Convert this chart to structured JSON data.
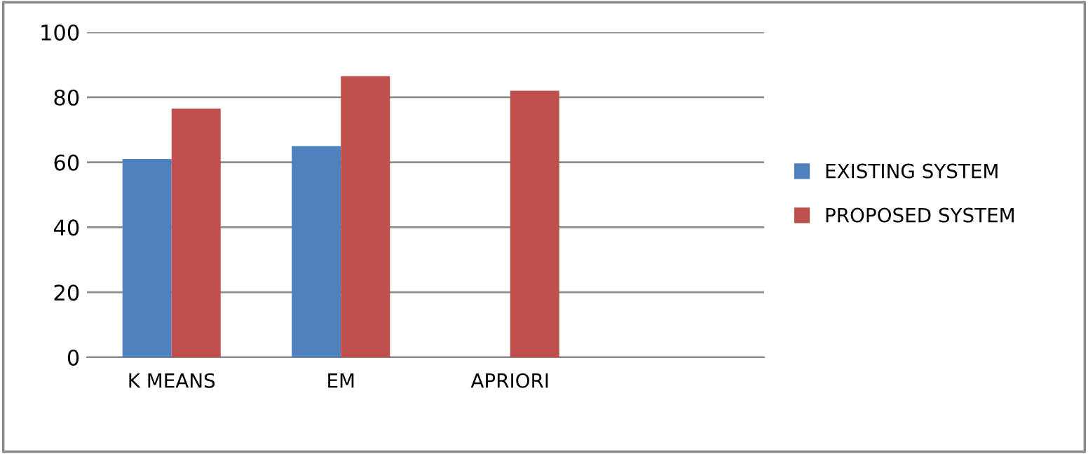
{
  "chart_data": {
    "type": "bar",
    "categories": [
      "K MEANS",
      "EM",
      "APRIORI",
      null
    ],
    "series": [
      {
        "name": "EXISTING SYSTEM",
        "color": "#4f81bd",
        "values": [
          61,
          65,
          null,
          null
        ]
      },
      {
        "name": "PROPOSED SYSTEM",
        "color": "#c0504d",
        "values": [
          76.5,
          86.5,
          82,
          null
        ]
      }
    ],
    "ylim": [
      0,
      100
    ],
    "yticks": [
      0,
      20,
      40,
      60,
      80,
      100
    ],
    "grid": "y",
    "legend": "right"
  }
}
